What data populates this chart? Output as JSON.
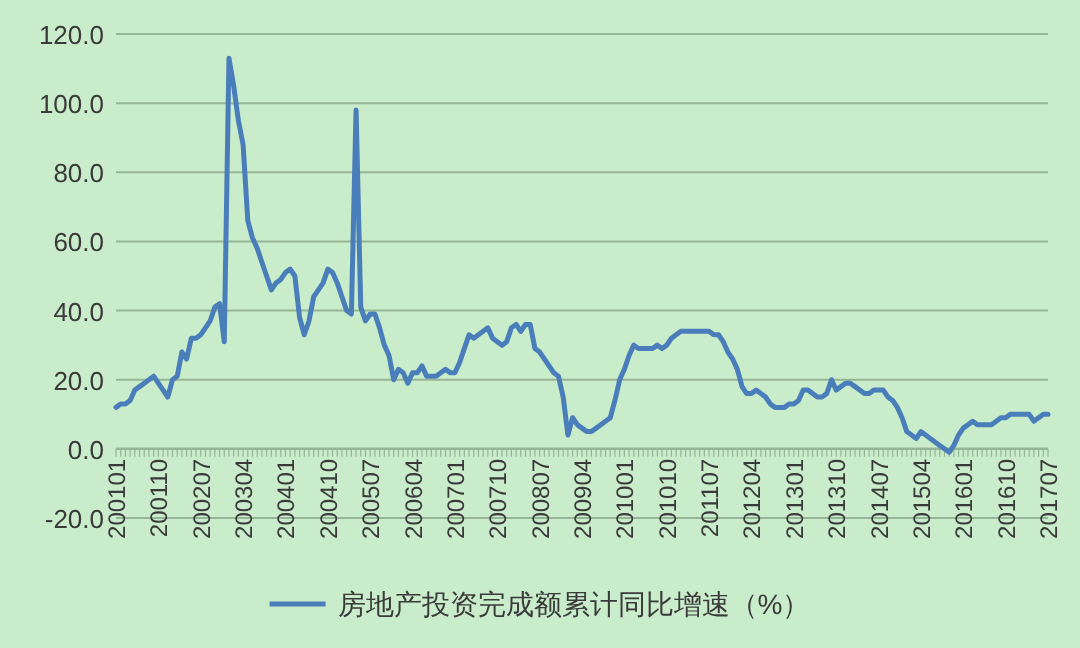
{
  "chart_data": {
    "type": "line",
    "categories": [
      "200101",
      null,
      null,
      null,
      null,
      null,
      null,
      null,
      null,
      "200110",
      null,
      null,
      null,
      null,
      null,
      null,
      null,
      null,
      "200207",
      null,
      null,
      null,
      null,
      null,
      null,
      null,
      null,
      "200304",
      null,
      null,
      null,
      null,
      null,
      null,
      null,
      null,
      "200401",
      null,
      null,
      null,
      null,
      null,
      null,
      null,
      null,
      "200410",
      null,
      null,
      null,
      null,
      null,
      null,
      null,
      null,
      "200507",
      null,
      null,
      null,
      null,
      null,
      null,
      null,
      null,
      "200604",
      null,
      null,
      null,
      null,
      null,
      null,
      null,
      null,
      "200701",
      null,
      null,
      null,
      null,
      null,
      null,
      null,
      null,
      "200710",
      null,
      null,
      null,
      null,
      null,
      null,
      null,
      null,
      "200807",
      null,
      null,
      null,
      null,
      null,
      null,
      null,
      null,
      "200904",
      null,
      null,
      null,
      null,
      null,
      null,
      null,
      null,
      "201001",
      null,
      null,
      null,
      null,
      null,
      null,
      null,
      null,
      "201010",
      null,
      null,
      null,
      null,
      null,
      null,
      null,
      null,
      "201107",
      null,
      null,
      null,
      null,
      null,
      null,
      null,
      null,
      "201204",
      null,
      null,
      null,
      null,
      null,
      null,
      null,
      null,
      "201301",
      null,
      null,
      null,
      null,
      null,
      null,
      null,
      null,
      "201310",
      null,
      null,
      null,
      null,
      null,
      null,
      null,
      null,
      "201407",
      null,
      null,
      null,
      null,
      null,
      null,
      null,
      null,
      "201504",
      null,
      null,
      null,
      null,
      null,
      null,
      null,
      null,
      "201601",
      null,
      null,
      null,
      null,
      null,
      null,
      null,
      null,
      "201610",
      null,
      null,
      null,
      null,
      null,
      null,
      null,
      null,
      "201707"
    ],
    "series": [
      {
        "name": "房地产投资完成额累计同比增速（%）",
        "color": "#4a7ebb",
        "values": [
          12,
          13,
          13,
          14,
          17,
          18,
          19,
          20,
          21,
          19,
          17,
          15,
          20,
          21,
          28,
          26,
          32,
          32,
          33,
          35,
          37,
          41,
          42,
          31,
          113,
          105,
          95,
          88,
          66,
          61,
          58,
          54,
          50,
          46,
          48,
          49,
          51,
          52,
          50,
          38,
          33,
          37,
          44,
          46,
          48,
          52,
          51,
          48,
          44,
          40,
          39,
          98,
          41,
          37,
          39,
          39,
          35,
          30,
          27,
          20,
          23,
          22,
          19,
          22,
          22,
          24,
          21,
          21,
          21,
          22,
          23,
          22,
          22,
          25,
          29,
          33,
          32,
          33,
          34,
          35,
          32,
          31,
          30,
          31,
          35,
          36,
          34,
          36,
          36,
          29,
          28,
          26,
          24,
          22,
          21,
          15,
          4,
          9,
          7,
          6,
          5,
          5,
          6,
          7,
          8,
          9,
          14,
          20,
          23,
          27,
          30,
          29,
          29,
          29,
          29,
          30,
          29,
          30,
          32,
          33,
          34,
          34,
          34,
          34,
          34,
          34,
          34,
          33,
          33,
          31,
          28,
          26,
          23,
          18,
          16,
          16,
          17,
          16,
          15,
          13,
          12,
          12,
          12,
          13,
          13,
          14,
          17,
          17,
          16,
          15,
          15,
          16,
          20,
          17,
          18,
          19,
          19,
          18,
          17,
          16,
          16,
          17,
          17,
          17,
          15,
          14,
          12,
          9,
          5,
          4,
          3,
          5,
          4,
          3,
          2,
          1,
          0,
          -1,
          1,
          4,
          6,
          7,
          8,
          7,
          7,
          7,
          7,
          8,
          9,
          9,
          10,
          10,
          10,
          10,
          10,
          8,
          9,
          10,
          10
        ]
      }
    ],
    "ylim": [
      -20,
      120
    ],
    "yticks": [
      {
        "value": -20,
        "label": "-20.0"
      },
      {
        "value": 0,
        "label": "0.0"
      },
      {
        "value": 20,
        "label": "20.0"
      },
      {
        "value": 40,
        "label": "40.0"
      },
      {
        "value": 60,
        "label": "60.0"
      },
      {
        "value": 80,
        "label": "80.0"
      },
      {
        "value": 100,
        "label": "100.0"
      },
      {
        "value": 120,
        "label": "120.0"
      }
    ],
    "grid": "y",
    "legend": "bottom",
    "line_style": "solid",
    "marker": "none"
  }
}
